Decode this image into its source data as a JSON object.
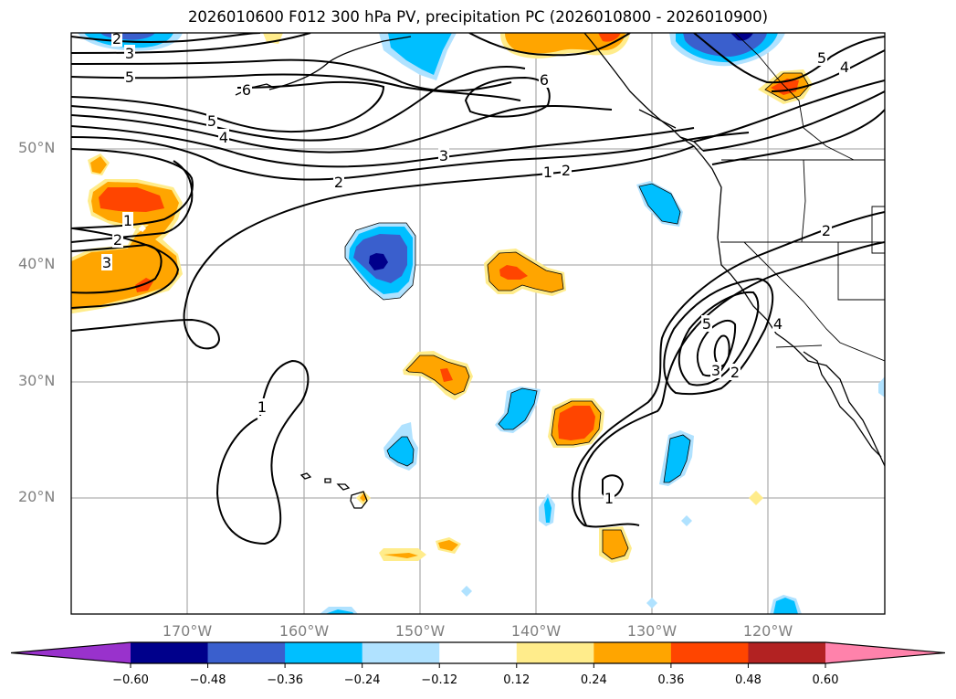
{
  "title": "2026010600 F012 300 hPa PV, precipitation PC (2026010800 - 2026010900)",
  "map": {
    "region": "North-East Pacific",
    "lat_labels": [
      "50°N",
      "40°N",
      "30°N",
      "20°N"
    ],
    "lon_labels": [
      "170°W",
      "160°W",
      "150°W",
      "140°W",
      "130°W",
      "120°W"
    ],
    "gridline_color": "#b0b0b0",
    "pv_contour_labels": [
      "2",
      "3",
      "5",
      "6",
      "5",
      "4",
      "3",
      "2",
      "1",
      "6",
      "5",
      "4",
      "1",
      "2",
      "3",
      "1",
      "2",
      "4",
      "5",
      "3",
      "2",
      "1",
      "2"
    ],
    "coastline_color": "#000000"
  },
  "colorbar": {
    "ticks": [
      "−0.60",
      "−0.48",
      "−0.36",
      "−0.24",
      "−0.12",
      "0.12",
      "0.24",
      "0.36",
      "0.48",
      "0.60"
    ],
    "colors": [
      "#9932cc",
      "#00008b",
      "#3a5fcd",
      "#00bfff",
      "#b0e2ff",
      "#ffffff",
      "#ffec8b",
      "#ffa500",
      "#ff4500",
      "#b22222",
      "#ff82ab"
    ],
    "extend": "both"
  }
}
